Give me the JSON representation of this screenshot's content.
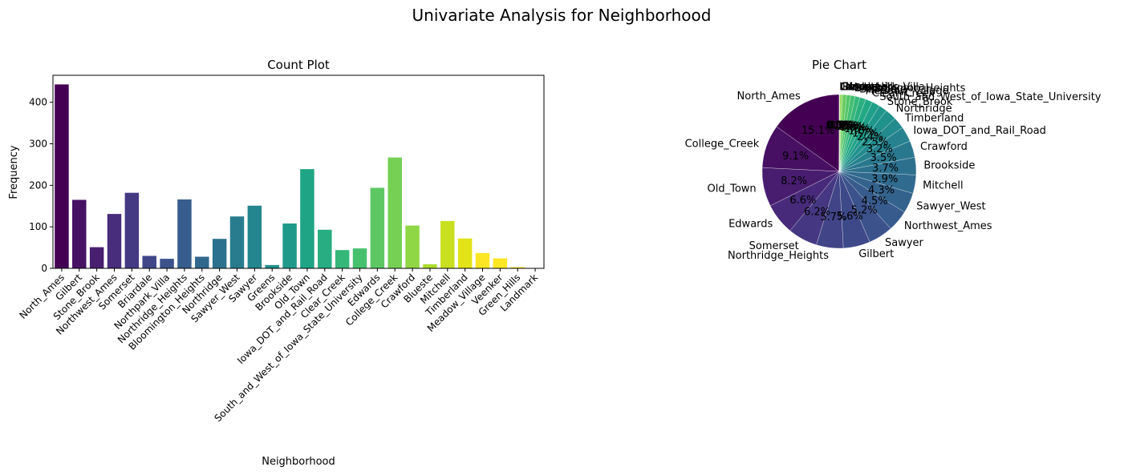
{
  "figure_title": "Univariate Analysis for Neighborhood",
  "chart_data": [
    {
      "type": "bar",
      "title": "Count Plot",
      "xlabel": "Neighborhood",
      "ylabel": "Frequency",
      "ylim": [
        0,
        465
      ],
      "yticks": [
        0,
        100,
        200,
        300,
        400
      ],
      "grid": false,
      "categories": [
        "North_Ames",
        "Gilbert",
        "Stone_Brook",
        "Northwest_Ames",
        "Somerset",
        "Briardale",
        "Northpark_Villa",
        "Northridge_Heights",
        "Bloomington_Heights",
        "Northridge",
        "Sawyer_West",
        "Sawyer",
        "Greens",
        "Brookside",
        "Old_Town",
        "Iowa_DOT_and_Rail_Road",
        "Clear_Creek",
        "South_and_West_of_Iowa_State_University",
        "Edwards",
        "College_Creek",
        "Crawford",
        "Blueste",
        "Mitchell",
        "Timberland",
        "Meadow_Village",
        "Veenker",
        "Green_Hills",
        "Landmark"
      ],
      "values": [
        443,
        165,
        51,
        131,
        182,
        30,
        23,
        166,
        28,
        71,
        125,
        151,
        8,
        108,
        239,
        93,
        44,
        48,
        194,
        267,
        103,
        10,
        114,
        72,
        37,
        24,
        3,
        1
      ],
      "colors": [
        "#440154",
        "#471164",
        "#481f70",
        "#472d7b",
        "#443a83",
        "#404688",
        "#3b528b",
        "#365d8d",
        "#31688e",
        "#2c728e",
        "#287c8e",
        "#24868e",
        "#21918c",
        "#1f9a8a",
        "#20a486",
        "#27ad81",
        "#35b779",
        "#47c16e",
        "#5dc863",
        "#75d054",
        "#8fd744",
        "#addc30",
        "#c8e020",
        "#e2e418",
        "#fde725",
        "#fde725",
        "#fde725",
        "#fde725"
      ]
    },
    {
      "type": "pie",
      "title": "Pie Chart",
      "labels": [
        "North_Ames",
        "College_Creek",
        "Old_Town",
        "Edwards",
        "Somerset",
        "Northridge_Heights",
        "Gilbert",
        "Sawyer",
        "Northwest_Ames",
        "Sawyer_West",
        "Mitchell",
        "Brookside",
        "Crawford",
        "Iowa_DOT_and_Rail_Road",
        "Timberland",
        "Northridge",
        "Stone_Brook",
        "South_and_West_of_Iowa_State_University",
        "Clear_Creek",
        "Meadow_Village",
        "Briardale",
        "Bloomington_Heights",
        "Veenker",
        "Northpark_Villa",
        "Blueste",
        "Greens",
        "Green_Hills",
        "Landmark"
      ],
      "values": [
        443,
        267,
        239,
        194,
        182,
        166,
        165,
        151,
        131,
        125,
        114,
        108,
        103,
        93,
        72,
        71,
        51,
        48,
        44,
        37,
        30,
        28,
        24,
        23,
        10,
        8,
        3,
        1
      ],
      "pct_labels": [
        "15.1%",
        "9.1%",
        "8.2%",
        "6.6%",
        "6.2%",
        "5.7%",
        "5.6%",
        "5.2%",
        "4.5%",
        "4.3%",
        "3.9%",
        "3.7%",
        "3.5%",
        "3.2%",
        "2.5%",
        "2.4%",
        "1.7%",
        "1.6%",
        "1.5%",
        "1.3%",
        "1.0%",
        "1.0%",
        "0.8%",
        "0.8%",
        "0.3%",
        "0.3%",
        "0.1%",
        "0.0%"
      ],
      "colors": [
        "#440154",
        "#471063",
        "#481d6f",
        "#472a7a",
        "#453781",
        "#414487",
        "#3e4989",
        "#3b528b",
        "#375b8d",
        "#33638d",
        "#306a8e",
        "#2d708e",
        "#2a788e",
        "#26828e",
        "#238a8d",
        "#21918c",
        "#1f988b",
        "#1fa088",
        "#22a884",
        "#2ab07f",
        "#35b779",
        "#44bf70",
        "#54c568",
        "#65cb5e",
        "#7ad151",
        "#8fd744",
        "#a5db36",
        "#bddf26"
      ],
      "start_angle_deg": 90,
      "direction": "counterclockwise"
    }
  ]
}
